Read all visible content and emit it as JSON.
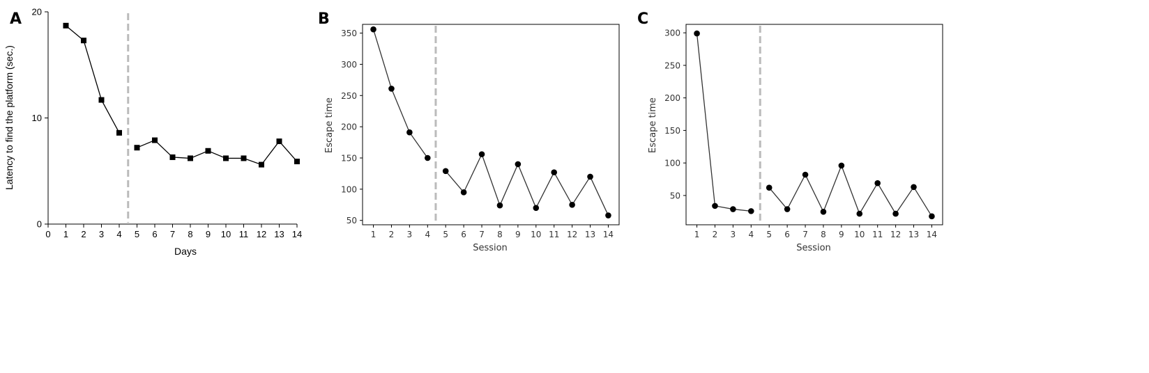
{
  "chart_data": [
    {
      "panel": "A",
      "type": "line",
      "marker": "square",
      "xlabel": "Days",
      "ylabel": "Latency to find the platform (sec.)",
      "xlim": [
        0,
        14
      ],
      "ylim": [
        0,
        20
      ],
      "x_ticks": [
        "0",
        "1",
        "2",
        "3",
        "4",
        "5",
        "6",
        "7",
        "8",
        "9",
        "10",
        "11",
        "12",
        "13",
        "14"
      ],
      "y_ticks": [
        "0",
        "10",
        "20"
      ],
      "divider_x": 4.5,
      "segments": [
        {
          "x": [
            1,
            2,
            3,
            4
          ],
          "y": [
            18.7,
            17.3,
            11.7,
            8.6
          ]
        },
        {
          "x": [
            5,
            6,
            7,
            8,
            9,
            10,
            11,
            12,
            13,
            14
          ],
          "y": [
            7.2,
            7.9,
            6.3,
            6.2,
            6.9,
            6.2,
            6.2,
            5.6,
            7.8,
            5.9
          ]
        }
      ],
      "colors": {
        "line": "#000000",
        "divider": "#bbbbbb"
      },
      "frame": "left-bottom",
      "grid": false
    },
    {
      "panel": "B",
      "type": "line",
      "marker": "circle",
      "xlabel": "Session",
      "ylabel": "Escape time",
      "xlim": [
        0.4,
        14.6
      ],
      "ylim": [
        43,
        364
      ],
      "x_ticks": [
        "1",
        "2",
        "3",
        "4",
        "5",
        "6",
        "7",
        "8",
        "9",
        "10",
        "11",
        "12",
        "13",
        "14"
      ],
      "y_ticks": [
        "50",
        "100",
        "150",
        "200",
        "250",
        "300",
        "350"
      ],
      "divider_x": 4.45,
      "segments": [
        {
          "x": [
            1,
            2,
            3,
            4
          ],
          "y": [
            356,
            261,
            191,
            150
          ]
        },
        {
          "x": [
            5,
            6,
            7,
            8,
            9,
            10,
            11,
            12,
            13,
            14
          ],
          "y": [
            129,
            95,
            156,
            74,
            140,
            70,
            127,
            75,
            120,
            58
          ]
        }
      ],
      "colors": {
        "line": "#333333",
        "marker": "#000000",
        "divider": "#bbbbbb"
      },
      "frame": "box",
      "grid": false
    },
    {
      "panel": "C",
      "type": "line",
      "marker": "circle",
      "xlabel": "Session",
      "ylabel": "Escape time",
      "xlim": [
        0.4,
        14.6
      ],
      "ylim": [
        5,
        313
      ],
      "x_ticks": [
        "1",
        "2",
        "3",
        "4",
        "5",
        "6",
        "7",
        "8",
        "9",
        "10",
        "11",
        "12",
        "13",
        "14"
      ],
      "y_ticks": [
        "50",
        "100",
        "150",
        "200",
        "250",
        "300"
      ],
      "divider_x": 4.5,
      "segments": [
        {
          "x": [
            1,
            2,
            3,
            4
          ],
          "y": [
            299,
            34,
            29,
            26
          ]
        },
        {
          "x": [
            5,
            6,
            7,
            8,
            9,
            10,
            11,
            12,
            13,
            14
          ],
          "y": [
            62,
            29,
            82,
            25,
            96,
            22,
            69,
            22,
            63,
            18
          ]
        }
      ],
      "colors": {
        "line": "#333333",
        "marker": "#000000",
        "divider": "#bbbbbb"
      },
      "frame": "box",
      "grid": false
    }
  ]
}
